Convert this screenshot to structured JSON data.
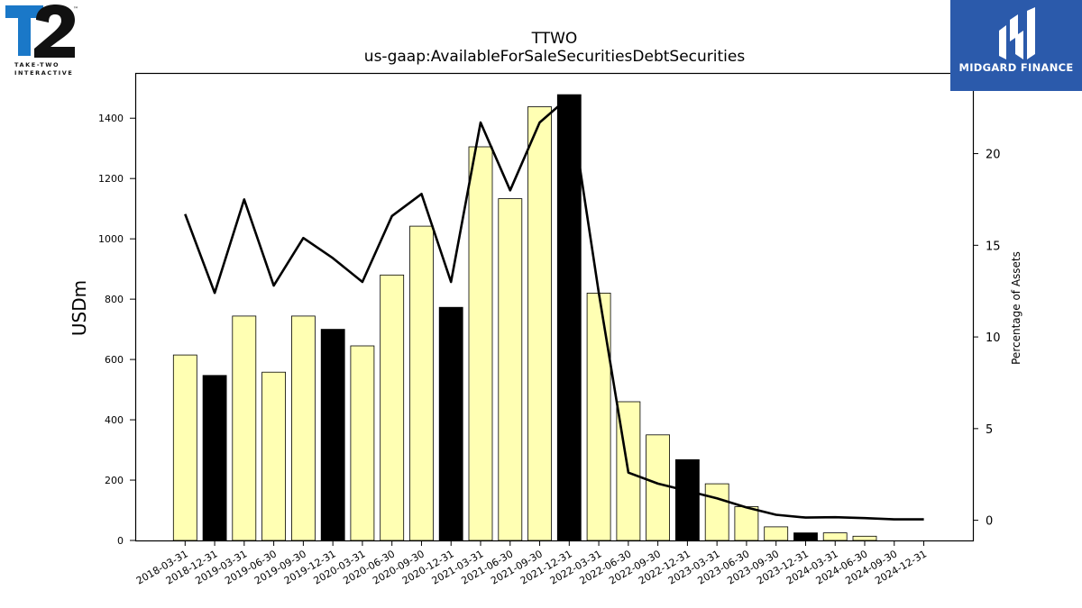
{
  "logos": {
    "left": {
      "sub_line1": "TAKE-TWO",
      "sub_line2": "INTERACTIVE",
      "tm": "™"
    },
    "right": {
      "name": "MIDGARD FINANCE"
    }
  },
  "colors": {
    "bar_highlight": "#000000",
    "bar_normal": "#ffffb3",
    "line": "#000000",
    "brand_blue": "#2b5aab",
    "t2_blue": "#1a78c8"
  },
  "chart_data": {
    "type": "bar",
    "title": "TTWO",
    "subtitle": "us-gaap:AvailableForSaleSecuritiesDebtSecurities",
    "ylabel": "USDm",
    "y2label": "Percentage of Assets",
    "ylim": [
      0,
      1550
    ],
    "y2lim": [
      -1.1,
      24.4
    ],
    "yticks": [
      0,
      200,
      400,
      600,
      800,
      1000,
      1200,
      1400
    ],
    "y2ticks": [
      0,
      5,
      10,
      15,
      20
    ],
    "categories": [
      "2018-03-31",
      "2018-12-31",
      "2019-03-31",
      "2019-06-30",
      "2019-09-30",
      "2019-12-31",
      "2020-03-31",
      "2020-06-30",
      "2020-09-30",
      "2020-12-31",
      "2021-03-31",
      "2021-06-30",
      "2021-09-30",
      "2021-12-31",
      "2022-03-31",
      "2022-06-30",
      "2022-09-30",
      "2022-12-31",
      "2023-03-31",
      "2023-06-30",
      "2023-09-30",
      "2023-12-31",
      "2024-03-31",
      "2024-06-30",
      "2024-09-30",
      "2024-12-31"
    ],
    "series": [
      {
        "kind": "bar",
        "values": [
          615,
          547,
          744,
          558,
          744,
          700,
          645,
          880,
          1042,
          773,
          1305,
          1133,
          1438,
          1478,
          820,
          460,
          350,
          268,
          188,
          112,
          45,
          25,
          25,
          14,
          0,
          0
        ],
        "highlight": [
          false,
          true,
          false,
          false,
          false,
          true,
          false,
          false,
          false,
          true,
          false,
          false,
          false,
          true,
          false,
          false,
          false,
          true,
          false,
          false,
          false,
          true,
          false,
          false,
          false,
          true
        ]
      },
      {
        "kind": "line",
        "axis": "right",
        "values": [
          16.7,
          12.4,
          17.5,
          12.8,
          15.4,
          14.3,
          13.0,
          16.6,
          17.8,
          13.0,
          21.7,
          18.0,
          21.7,
          23.1,
          12.4,
          2.6,
          2.0,
          1.6,
          1.2,
          0.7,
          0.3,
          0.15,
          0.17,
          0.12,
          0.05,
          0.05
        ]
      }
    ],
    "grid": false
  }
}
